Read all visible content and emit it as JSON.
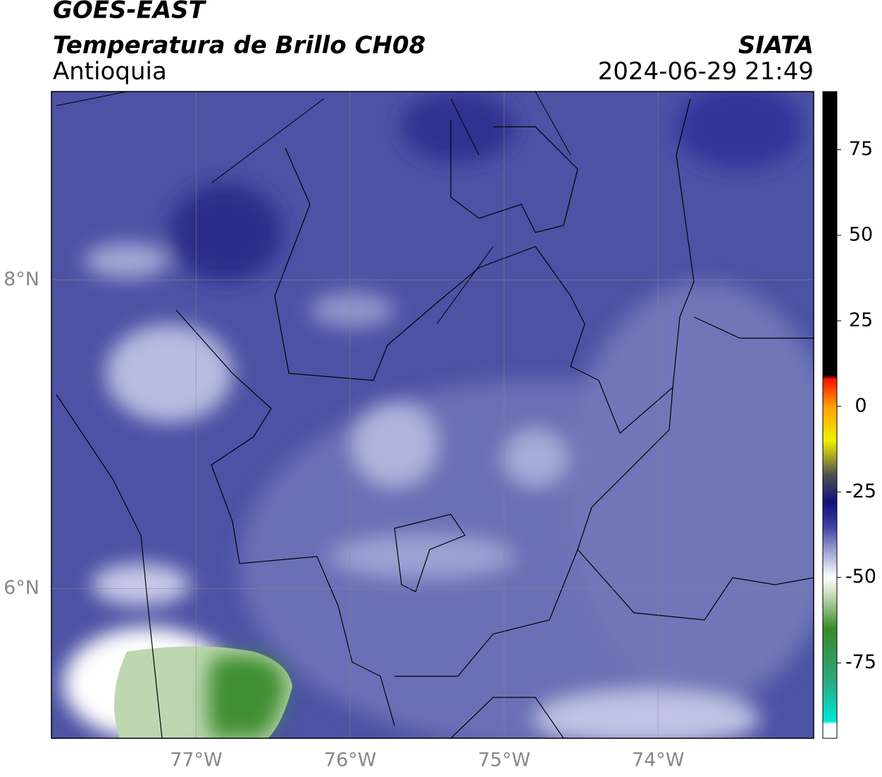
{
  "header": {
    "title": "GOES-EAST",
    "subtitle": "Temperatura de Brillo CH08",
    "region": "Antioquia",
    "source": "SIATA",
    "timestamp": "2024-06-29 21:49"
  },
  "map": {
    "xlim": [
      -77.94,
      -72.99
    ],
    "ylim": [
      5.03,
      9.22
    ],
    "xticks": [
      {
        "value": -77,
        "label": "77°W"
      },
      {
        "value": -76,
        "label": "76°W"
      },
      {
        "value": -75,
        "label": "75°W"
      },
      {
        "value": -74,
        "label": "74°W"
      }
    ],
    "yticks": [
      {
        "value": 6,
        "label": "6°N"
      },
      {
        "value": 8,
        "label": "8°N"
      }
    ],
    "grid": true
  },
  "colorbar": {
    "lim": [
      -97,
      92
    ],
    "ticks": [
      75,
      50,
      25,
      0,
      -25,
      -50,
      -75
    ],
    "colormap": [
      {
        "value": -97,
        "color": "#ffffff"
      },
      {
        "value": -93,
        "color": "#ffffff"
      },
      {
        "value": -92,
        "color": "#00e8d8"
      },
      {
        "value": -80,
        "color": "#2aa880"
      },
      {
        "value": -65,
        "color": "#3a8a2a"
      },
      {
        "value": -55,
        "color": "#c8dcb8"
      },
      {
        "value": -50,
        "color": "#ffffff"
      },
      {
        "value": -42,
        "color": "#9a9ed0"
      },
      {
        "value": -35,
        "color": "#3c40a0"
      },
      {
        "value": -28,
        "color": "#10107a"
      },
      {
        "value": -20,
        "color": "#505050"
      },
      {
        "value": -10,
        "color": "#f0f000"
      },
      {
        "value": 0,
        "color": "#ffa000"
      },
      {
        "value": 8,
        "color": "#ff1000"
      },
      {
        "value": 9,
        "color": "#000000"
      },
      {
        "value": 92,
        "color": "#000000"
      }
    ]
  }
}
